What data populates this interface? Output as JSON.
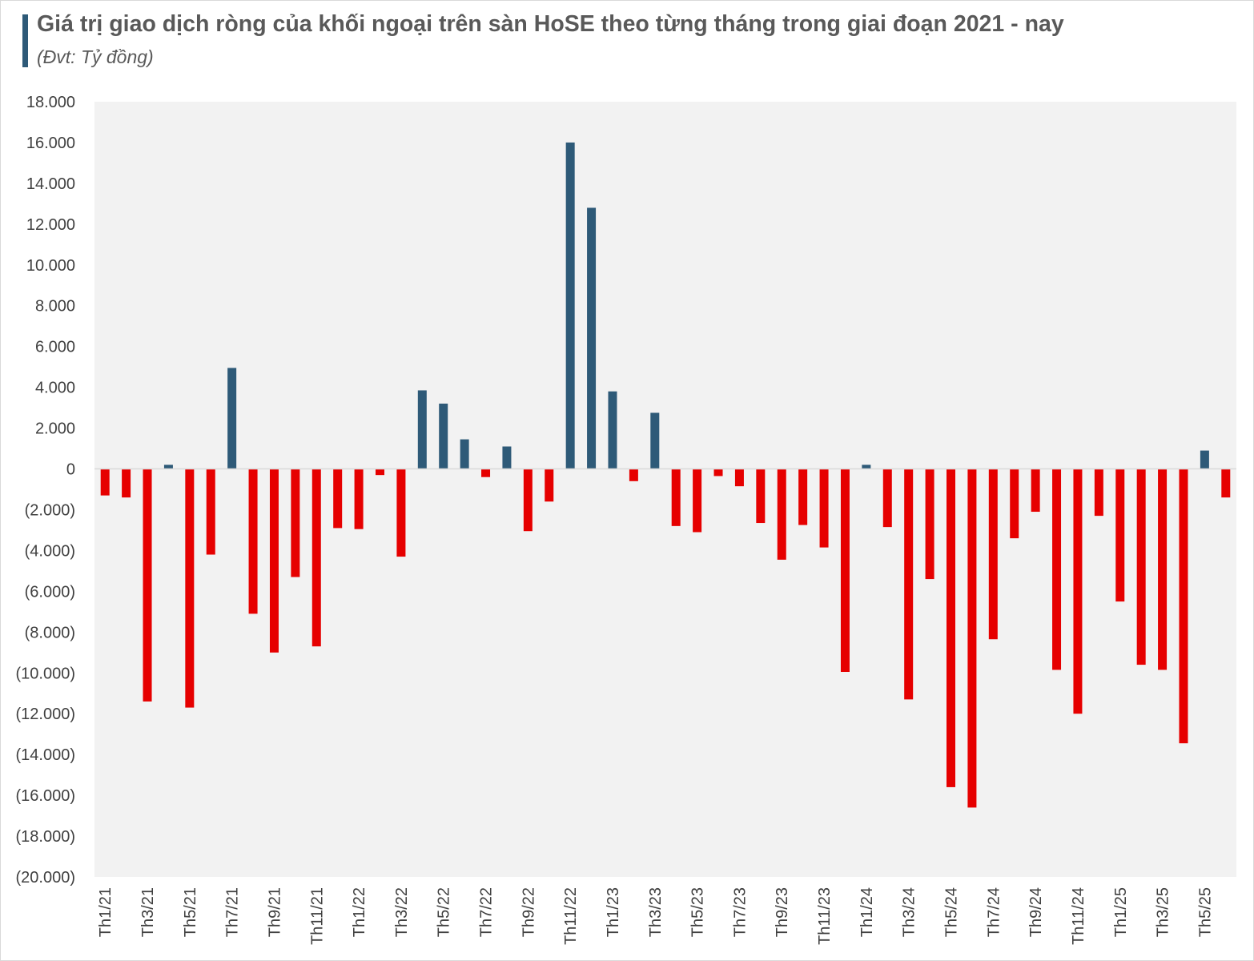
{
  "header": {
    "title": "Giá trị giao dịch ròng của khối ngoại trên sàn HoSE theo từng tháng trong giai đoạn 2021 - nay",
    "subtitle": "(Đvt: Tỷ đồng)"
  },
  "colors": {
    "positive": "#2e5a78",
    "negative": "#e60000",
    "accent_bar": "#2e5a78",
    "plot_bg": "#f2f2f2"
  },
  "chart_data": {
    "type": "bar",
    "title": "Giá trị giao dịch ròng của khối ngoại trên sàn HoSE theo từng tháng trong giai đoạn 2021 - nay",
    "subtitle": "(Đvt: Tỷ đồng)",
    "xlabel": "",
    "ylabel": "",
    "ylim": [
      -20000,
      18000
    ],
    "y_tick_step": 2000,
    "y_tick_labels": [
      "(20.000)",
      "(18.000)",
      "(16.000)",
      "(14.000)",
      "(12.000)",
      "(10.000)",
      "(8.000)",
      "(6.000)",
      "(4.000)",
      "(2.000)",
      "0",
      "2.000",
      "4.000",
      "6.000",
      "8.000",
      "10.000",
      "12.000",
      "14.000",
      "16.000",
      "18.000"
    ],
    "x_tick_labels": [
      "Th1/21",
      "Th3/21",
      "Th5/21",
      "Th7/21",
      "Th9/21",
      "Th11/21",
      "Th1/22",
      "Th3/22",
      "Th5/22",
      "Th7/22",
      "Th9/22",
      "Th11/22",
      "Th1/23",
      "Th3/23",
      "Th5/23",
      "Th7/23",
      "Th9/23",
      "Th11/23",
      "Th1/24",
      "Th3/24",
      "Th5/24",
      "Th7/24",
      "Th9/24",
      "Th11/24",
      "Th1/25",
      "Th3/25",
      "Th5/25"
    ],
    "categories": [
      "Th1/21",
      "Th2/21",
      "Th3/21",
      "Th4/21",
      "Th5/21",
      "Th6/21",
      "Th7/21",
      "Th8/21",
      "Th9/21",
      "Th10/21",
      "Th11/21",
      "Th12/21",
      "Th1/22",
      "Th2/22",
      "Th3/22",
      "Th4/22",
      "Th5/22",
      "Th6/22",
      "Th7/22",
      "Th8/22",
      "Th9/22",
      "Th10/22",
      "Th11/22",
      "Th12/22",
      "Th1/23",
      "Th2/23",
      "Th3/23",
      "Th4/23",
      "Th5/23",
      "Th6/23",
      "Th7/23",
      "Th8/23",
      "Th9/23",
      "Th10/23",
      "Th11/23",
      "Th12/23",
      "Th1/24",
      "Th2/24",
      "Th3/24",
      "Th4/24",
      "Th5/24",
      "Th6/24",
      "Th7/24",
      "Th8/24",
      "Th9/24",
      "Th10/24",
      "Th11/24",
      "Th12/24",
      "Th1/25",
      "Th2/25",
      "Th3/25",
      "Th4/25",
      "Th5/25",
      "Th6/25"
    ],
    "values": [
      -1300,
      -1400,
      -11400,
      200,
      -11700,
      -4200,
      4950,
      -7100,
      -9000,
      -5300,
      -8700,
      -2900,
      -2950,
      -300,
      -4300,
      3850,
      3200,
      1450,
      -400,
      1100,
      -3050,
      -1600,
      16000,
      12800,
      3800,
      -600,
      2750,
      -2800,
      -3100,
      -350,
      -850,
      -2650,
      -4450,
      -2750,
      -3850,
      -9950,
      200,
      -2850,
      -11300,
      -5400,
      -15600,
      -16600,
      -8350,
      -3400,
      -2100,
      -9850,
      -12000,
      -2300,
      -6500,
      -9600,
      -9850,
      -13450,
      900,
      -1400
    ],
    "grid": false,
    "legend": "none"
  }
}
